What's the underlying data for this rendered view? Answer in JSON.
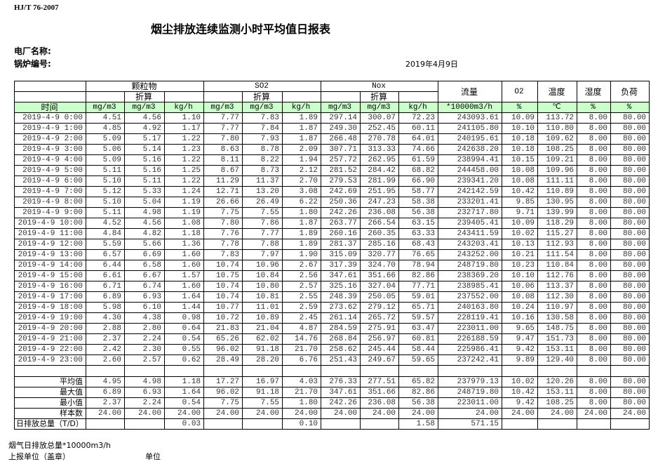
{
  "standard": "HJ/T  76-2007",
  "title": "烟尘排放连续监测小时平均值日报表",
  "plant_label": "电厂名称:",
  "boiler_label": "锅炉编号:",
  "date": "2019年4月9日",
  "header": {
    "pm": "颗粒物",
    "so2": "SO2",
    "nox": "Nox",
    "converted": "折算",
    "flow": "流量",
    "o2": "O2",
    "temp": "温度",
    "humidity": "湿度",
    "load": "负荷",
    "time": "时间",
    "units": [
      "mg/m3",
      "mg/m3",
      "kg/h",
      "mg/m3",
      "mg/m3",
      "kg/h",
      "mg/m3",
      "mg/m3",
      "kg/h",
      "*10000m3/h",
      "%",
      "℃",
      "%",
      "%"
    ]
  },
  "rows": [
    [
      "2019-4-9 0:00",
      "4.51",
      "4.56",
      "1.10",
      "7.77",
      "7.83",
      "1.89",
      "297.14",
      "300.07",
      "72.23",
      "243093.61",
      "10.09",
      "113.72",
      "8.00",
      "80.00"
    ],
    [
      "2019-4-9 1:00",
      "4.85",
      "4.92",
      "1.17",
      "7.77",
      "7.84",
      "1.87",
      "249.30",
      "252.45",
      "60.11",
      "241105.80",
      "10.10",
      "110.80",
      "8.00",
      "80.00"
    ],
    [
      "2019-4-9 2:00",
      "5.09",
      "5.17",
      "1.22",
      "7.80",
      "7.93",
      "1.87",
      "266.48",
      "270.78",
      "64.01",
      "240195.61",
      "10.18",
      "109.62",
      "8.00",
      "80.00"
    ],
    [
      "2019-4-9 3:00",
      "5.06",
      "5.14",
      "1.23",
      "8.63",
      "8.78",
      "2.09",
      "307.71",
      "313.33",
      "74.66",
      "242638.20",
      "10.18",
      "108.25",
      "8.00",
      "80.00"
    ],
    [
      "2019-4-9 4:00",
      "5.09",
      "5.16",
      "1.22",
      "8.11",
      "8.22",
      "1.94",
      "257.72",
      "262.95",
      "61.59",
      "238994.41",
      "10.15",
      "109.21",
      "8.00",
      "80.00"
    ],
    [
      "2019-4-9 5:00",
      "5.11",
      "5.16",
      "1.25",
      "8.67",
      "8.73",
      "2.12",
      "281.52",
      "284.42",
      "68.82",
      "244458.00",
      "10.08",
      "109.96",
      "8.00",
      "80.00"
    ],
    [
      "2019-4-9 6:00",
      "5.10",
      "5.11",
      "1.22",
      "11.29",
      "11.37",
      "2.70",
      "279.53",
      "281.99",
      "66.90",
      "239341.20",
      "10.08",
      "111.11",
      "8.00",
      "80.00"
    ],
    [
      "2019-4-9 7:00",
      "5.12",
      "5.33",
      "1.24",
      "12.71",
      "13.20",
      "3.08",
      "242.69",
      "251.95",
      "58.77",
      "242142.59",
      "10.42",
      "110.89",
      "8.00",
      "80.00"
    ],
    [
      "2019-4-9 8:00",
      "5.10",
      "5.04",
      "1.19",
      "26.66",
      "26.49",
      "6.22",
      "250.36",
      "247.23",
      "58.38",
      "233201.41",
      "9.85",
      "130.95",
      "8.00",
      "80.00"
    ],
    [
      "2019-4-9 9:00",
      "5.11",
      "4.98",
      "1.19",
      "7.75",
      "7.55",
      "1.80",
      "242.26",
      "236.08",
      "56.38",
      "232717.80",
      "9.71",
      "139.99",
      "8.00",
      "80.00"
    ],
    [
      "2019-4-9 10:00",
      "4.52",
      "4.56",
      "1.08",
      "7.80",
      "7.86",
      "1.87",
      "263.77",
      "266.54",
      "63.15",
      "239405.41",
      "10.09",
      "118.29",
      "8.00",
      "80.00"
    ],
    [
      "2019-4-9 11:00",
      "4.84",
      "4.82",
      "1.18",
      "7.76",
      "7.77",
      "1.89",
      "260.16",
      "260.35",
      "63.33",
      "243411.59",
      "10.02",
      "115.27",
      "8.00",
      "80.00"
    ],
    [
      "2019-4-9 12:00",
      "5.59",
      "5.66",
      "1.36",
      "7.78",
      "7.88",
      "1.89",
      "281.37",
      "285.16",
      "68.43",
      "243203.41",
      "10.13",
      "112.93",
      "8.00",
      "80.00"
    ],
    [
      "2019-4-9 13:00",
      "6.57",
      "6.69",
      "1.60",
      "7.83",
      "7.97",
      "1.90",
      "315.09",
      "320.77",
      "76.65",
      "243252.00",
      "10.21",
      "111.54",
      "8.00",
      "80.00"
    ],
    [
      "2019-4-9 14:00",
      "6.44",
      "6.58",
      "1.60",
      "10.74",
      "10.96",
      "2.67",
      "317.39",
      "324.70",
      "78.94",
      "248719.80",
      "10.23",
      "110.84",
      "8.00",
      "80.00"
    ],
    [
      "2019-4-9 15:00",
      "6.61",
      "6.67",
      "1.57",
      "10.75",
      "10.84",
      "2.56",
      "347.61",
      "351.66",
      "82.86",
      "238369.20",
      "10.10",
      "112.76",
      "8.00",
      "80.00"
    ],
    [
      "2019-4-9 16:00",
      "6.71",
      "6.74",
      "1.60",
      "10.74",
      "10.80",
      "2.57",
      "325.16",
      "327.04",
      "77.71",
      "238985.41",
      "10.06",
      "113.37",
      "8.00",
      "80.00"
    ],
    [
      "2019-4-9 17:00",
      "6.89",
      "6.93",
      "1.64",
      "10.74",
      "10.81",
      "2.55",
      "248.39",
      "250.05",
      "59.01",
      "237552.00",
      "10.08",
      "112.30",
      "8.00",
      "80.00"
    ],
    [
      "2019-4-9 18:00",
      "5.98",
      "6.10",
      "1.44",
      "10.77",
      "11.01",
      "2.59",
      "273.62",
      "279.12",
      "65.71",
      "240163.80",
      "10.24",
      "110.97",
      "8.00",
      "80.00"
    ],
    [
      "2019-4-9 19:00",
      "4.30",
      "4.38",
      "0.98",
      "10.72",
      "10.89",
      "2.45",
      "261.14",
      "265.72",
      "59.57",
      "228119.41",
      "10.16",
      "130.58",
      "8.00",
      "80.00"
    ],
    [
      "2019-4-9 20:00",
      "2.88",
      "2.80",
      "0.64",
      "21.83",
      "21.04",
      "4.87",
      "284.59",
      "275.91",
      "63.47",
      "223011.00",
      "9.65",
      "148.75",
      "8.00",
      "80.00"
    ],
    [
      "2019-4-9 21:00",
      "2.37",
      "2.24",
      "0.54",
      "65.26",
      "62.02",
      "14.76",
      "268.84",
      "256.97",
      "60.81",
      "226188.59",
      "9.47",
      "151.73",
      "8.00",
      "80.00"
    ],
    [
      "2019-4-9 22:00",
      "2.42",
      "2.30",
      "0.55",
      "96.02",
      "91.18",
      "21.70",
      "258.62",
      "245.44",
      "58.44",
      "225986.41",
      "9.42",
      "153.11",
      "8.00",
      "80.00"
    ],
    [
      "2019-4-9 23:00",
      "2.60",
      "2.57",
      "0.62",
      "28.49",
      "28.20",
      "6.76",
      "251.43",
      "249.67",
      "59.65",
      "237242.41",
      "9.89",
      "129.40",
      "8.00",
      "80.00"
    ]
  ],
  "summary": [
    [
      "平均值",
      "4.95",
      "4.98",
      "1.18",
      "17.27",
      "16.97",
      "4.03",
      "276.33",
      "277.51",
      "65.82",
      "237979.13",
      "10.02",
      "120.26",
      "8.00",
      "80.00"
    ],
    [
      "最大值",
      "6.89",
      "6.93",
      "1.64",
      "96.02",
      "91.18",
      "21.70",
      "347.61",
      "351.66",
      "82.86",
      "248719.80",
      "10.42",
      "153.11",
      "8.00",
      "80.00"
    ],
    [
      "最小值",
      "2.37",
      "2.24",
      "0.54",
      "7.75",
      "7.55",
      "1.80",
      "242.26",
      "236.08",
      "56.38",
      "223011.00",
      "9.42",
      "108.25",
      "8.00",
      "80.00"
    ],
    [
      "样本数",
      "24.00",
      "24.00",
      "24.00",
      "24.00",
      "24.00",
      "24.00",
      "24.00",
      "24.00",
      "24.00",
      "24.00",
      "24.00",
      "24.00",
      "24.00",
      "24.00"
    ]
  ],
  "daily_total": [
    "日排放总量（T/D）",
    "",
    "",
    "0.03",
    "",
    "",
    "0.10",
    "",
    "",
    "1.58",
    "571.15",
    "",
    "",
    "",
    ""
  ],
  "footer": {
    "flue_gas_total": "烟气日排放总量*10000m3/h",
    "reporting_unit": "上报单位（盖章）",
    "unit": "单位"
  }
}
